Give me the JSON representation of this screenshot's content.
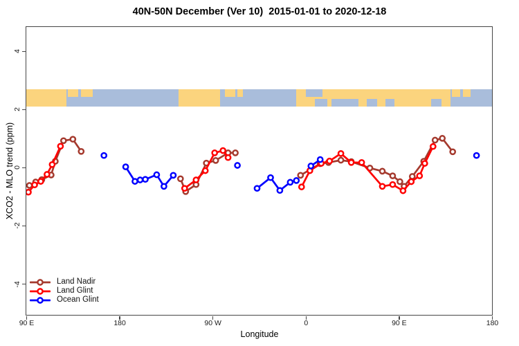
{
  "title": "40N-50N December (Ver 10)  2015-01-01 to 2020-12-18",
  "chart_data": {
    "type": "scatter",
    "title": "40N-50N December (Ver 10)  2015-01-01 to 2020-12-18",
    "xlabel": "Longitude",
    "ylabel": "XCO2 - MLO trend (ppm)",
    "grid": false,
    "x_axis": {
      "span_deg": 450,
      "note": "longitude axis wraps eastward: 90E -> 180 -> 90W -> 0 -> 90E -> 180",
      "ticks": [
        {
          "pos": 0,
          "label": "90 E"
        },
        {
          "pos": 90,
          "label": "180"
        },
        {
          "pos": 180,
          "label": "90 W"
        },
        {
          "pos": 270,
          "label": "0"
        },
        {
          "pos": 360,
          "label": "90 E"
        },
        {
          "pos": 450,
          "label": "180"
        }
      ]
    },
    "y_axis": {
      "lim": [
        -5.07,
        4.83
      ],
      "ticks": [
        {
          "value": -4,
          "label": "-4"
        },
        {
          "value": -2,
          "label": "-2"
        },
        {
          "value": 0,
          "label": "0"
        },
        {
          "value": 2,
          "label": "2"
        },
        {
          "value": 4,
          "label": "4"
        }
      ]
    },
    "map_band": {
      "description": "strip map of the 40N-50N latitude belt drawn across the plot",
      "ppm_range": [
        2.1,
        2.7
      ],
      "land_color": "#FBD47E",
      "ocean_color": "#A9BDDB",
      "segments": [
        {
          "type": "land",
          "from": 0,
          "to": 39,
          "patches": []
        },
        {
          "type": "ocean",
          "from": 39,
          "to": 147,
          "patches": [
            {
              "type": "land",
              "from": 40,
              "to": 50,
              "side": "top"
            },
            {
              "type": "land",
              "from": 53,
              "to": 64,
              "side": "top"
            }
          ]
        },
        {
          "type": "land",
          "from": 147,
          "to": 187,
          "patches": []
        },
        {
          "type": "ocean",
          "from": 187,
          "to": 261,
          "patches": [
            {
              "type": "land",
              "from": 192,
              "to": 202,
              "side": "top"
            },
            {
              "type": "land",
              "from": 204,
              "to": 209,
              "side": "top"
            }
          ]
        },
        {
          "type": "land",
          "from": 261,
          "to": 410,
          "patches": [
            {
              "type": "ocean",
              "from": 270,
              "to": 286,
              "side": "top"
            },
            {
              "type": "ocean",
              "from": 279,
              "to": 291,
              "side": "bottom"
            },
            {
              "type": "ocean",
              "from": 295,
              "to": 321,
              "side": "bottom"
            },
            {
              "type": "ocean",
              "from": 329,
              "to": 339,
              "side": "bottom"
            },
            {
              "type": "ocean",
              "from": 347,
              "to": 356,
              "side": "bottom"
            },
            {
              "type": "ocean",
              "from": 391,
              "to": 401,
              "side": "bottom"
            }
          ]
        },
        {
          "type": "ocean",
          "from": 410,
          "to": 450,
          "patches": [
            {
              "type": "land",
              "from": 411,
              "to": 419,
              "side": "top"
            },
            {
              "type": "land",
              "from": 422,
              "to": 429,
              "side": "top"
            }
          ]
        }
      ]
    },
    "series": [
      {
        "name": "Land Nadir",
        "color": "#A53A2E",
        "segments": [
          [
            [
              3,
              -0.62
            ],
            [
              9,
              -0.5
            ],
            [
              15,
              -0.42
            ],
            [
              24,
              -0.26
            ],
            [
              28,
              0.21
            ],
            [
              36,
              0.92
            ],
            [
              45,
              0.97
            ],
            [
              53,
              0.55
            ]
          ],
          [
            [
              149,
              -0.39
            ],
            [
              154,
              -0.83
            ],
            [
              164,
              -0.59
            ],
            [
              174,
              0.15
            ],
            [
              183,
              0.24
            ],
            [
              195,
              0.5
            ],
            [
              202,
              0.5
            ]
          ],
          [
            [
              265,
              -0.27
            ],
            [
              284,
              0.13
            ],
            [
              292,
              0.17
            ],
            [
              304,
              0.25
            ],
            [
              314,
              0.2
            ],
            [
              332,
              -0.02
            ],
            [
              344,
              -0.13
            ],
            [
              354,
              -0.29
            ],
            [
              361,
              -0.49
            ],
            [
              365,
              -0.65
            ],
            [
              373,
              -0.31
            ],
            [
              384,
              0.21
            ],
            [
              395,
              0.94
            ],
            [
              402,
              1.0
            ],
            [
              412,
              0.54
            ]
          ]
        ]
      },
      {
        "name": "Land Glint",
        "color": "#FF0000",
        "segments": [
          [
            [
              2,
              -0.85
            ],
            [
              8,
              -0.6
            ],
            [
              14,
              -0.48
            ],
            [
              20,
              -0.24
            ],
            [
              25,
              0.1
            ],
            [
              33,
              0.73
            ]
          ],
          [
            [
              153,
              -0.72
            ],
            [
              164,
              -0.43
            ],
            [
              173,
              -0.11
            ],
            [
              182,
              0.5
            ],
            [
              190,
              0.58
            ],
            [
              195,
              0.34
            ]
          ],
          [
            [
              266,
              -0.67
            ],
            [
              274,
              -0.11
            ],
            [
              285,
              0.14
            ],
            [
              293,
              0.22
            ],
            [
              304,
              0.48
            ],
            [
              314,
              0.17
            ],
            [
              324,
              0.17
            ],
            [
              344,
              -0.65
            ],
            [
              354,
              -0.59
            ],
            [
              364,
              -0.8
            ],
            [
              372,
              -0.49
            ],
            [
              380,
              -0.29
            ],
            [
              385,
              0.14
            ],
            [
              393,
              0.72
            ]
          ]
        ]
      },
      {
        "name": "Ocean Glint",
        "color": "#0000FF",
        "segments": [
          [
            [
              75,
              0.41
            ]
          ],
          [
            [
              96,
              0.02
            ],
            [
              105,
              -0.48
            ],
            [
              110,
              -0.43
            ],
            [
              115,
              -0.41
            ],
            [
              126,
              -0.25
            ],
            [
              133,
              -0.65
            ],
            [
              142,
              -0.27
            ]
          ],
          [
            [
              204,
              0.07
            ]
          ],
          [
            [
              223,
              -0.72
            ],
            [
              236,
              -0.35
            ],
            [
              245,
              -0.79
            ],
            [
              255,
              -0.51
            ],
            [
              261,
              -0.45
            ]
          ],
          [
            [
              275,
              0.05
            ],
            [
              284,
              0.27
            ]
          ],
          [
            [
              435,
              0.41
            ]
          ]
        ]
      }
    ],
    "legend": {
      "position": "bottom-left",
      "entries": [
        "Land Nadir",
        "Land Glint",
        "Ocean Glint"
      ]
    }
  }
}
